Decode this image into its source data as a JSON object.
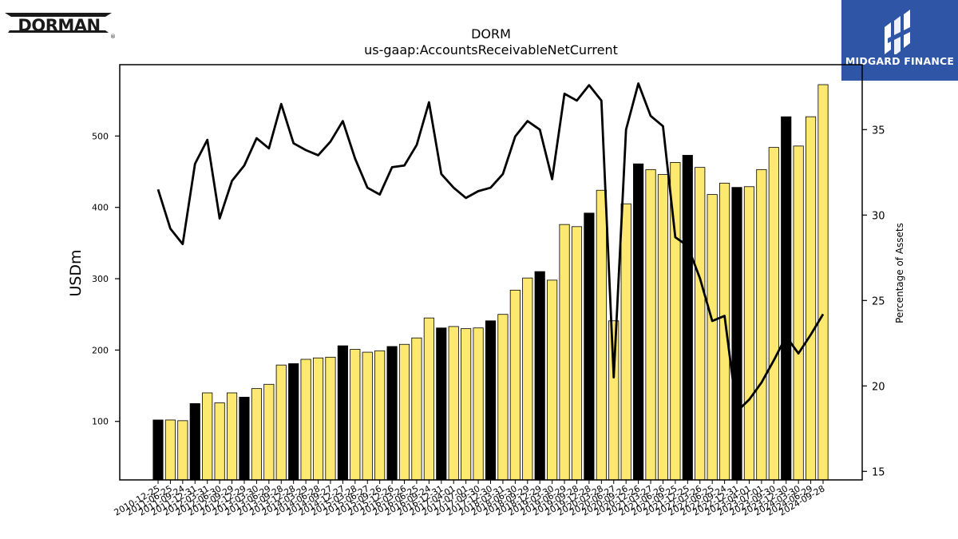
{
  "logos": {
    "left_text": "DORMAN",
    "right_text": "MIDGARD FINANCE"
  },
  "chart_data": {
    "type": "bar",
    "title": "DORM",
    "subtitle": "us-gaap:AccountsReceivableNetCurrent",
    "ylabel": "USDm",
    "y2label": "Percentage of Assets",
    "ylim": [
      18,
      600
    ],
    "y2lim": [
      14.5,
      38.8
    ],
    "yticks": [
      100,
      200,
      300,
      400,
      500
    ],
    "y2ticks": [
      15,
      20,
      25,
      30,
      35
    ],
    "colors": {
      "bar_annual": "#000000",
      "bar_quarter": "#fde96f",
      "line": "#000000"
    },
    "categories": [
      "2010-12-25",
      "2011-06-25",
      "2011-09-24",
      "2011-12-31",
      "2012-03-31",
      "2012-06-30",
      "2012-09-29",
      "2012-12-29",
      "2013-03-30",
      "2013-06-29",
      "2013-09-28",
      "2013-12-28",
      "2014-03-29",
      "2014-06-28",
      "2014-09-27",
      "2014-12-27",
      "2015-03-28",
      "2015-06-27",
      "2015-09-26",
      "2015-12-26",
      "2016-03-26",
      "2016-06-25",
      "2016-09-24",
      "2016-12-31",
      "2017-04-01",
      "2017-07-01",
      "2017-09-30",
      "2017-12-30",
      "2018-03-31",
      "2018-06-30",
      "2018-09-29",
      "2018-12-29",
      "2019-03-30",
      "2019-06-29",
      "2019-09-28",
      "2019-12-28",
      "2020-03-28",
      "2020-06-27",
      "2020-09-26",
      "2020-12-26",
      "2021-03-27",
      "2021-06-26",
      "2021-09-25",
      "2021-12-25",
      "2022-03-26",
      "2022-06-25",
      "2022-09-24",
      "2022-12-31",
      "2023-04-01",
      "2023-07-01",
      "2023-09-30",
      "2023-12-30",
      "2024-03-30",
      "2024-06-29",
      "2024-09-28"
    ],
    "tick_labels": [
      "2010-12-25",
      "2011-06-25",
      "2011-09-24",
      "2011-12-31",
      "2012-03-31",
      "2012-06-30",
      "2012-09-29",
      "2012-12-29",
      "2013-03-30",
      "2013-06-29",
      "2013-09-28",
      "2013-12-28",
      "2014-03-29",
      "2014-06-28",
      "2014-09-27",
      "2014-12-27",
      "2015-03-28",
      "2015-06-27",
      "2015-09-26",
      "2015-12-26",
      "2016-03-26",
      "2016-06-25",
      "2016-09-24",
      "2016-12-31",
      "2017-04-01",
      "2017-07-01",
      "2017-09-30",
      "2017-12-30",
      "2018-03-31",
      "2018-06-30",
      "2018-09-29",
      "2018-12-29",
      "2019-03-30",
      "2019-06-29",
      "2019-09-28",
      "2019-12-28",
      "2020-03-28",
      "2020-06-27",
      "2020-09-26",
      "2020-12-26",
      "2021-03-27",
      "2021-06-26",
      "2021-09-25",
      "2021-12-25",
      "2022-03-26",
      "2022-06-25",
      "2022-09-24",
      "2022-12-31",
      "2023-04-01",
      "2023-07-01",
      "2023-09-30",
      "2023-12-30",
      "2024-03-30",
      "2024-06-29",
      "2024-09-28"
    ],
    "series": [
      {
        "kind": "bar",
        "axis": "left",
        "values": [
          102,
          102,
          101,
          125,
          140,
          126,
          140,
          134,
          146,
          152,
          179,
          181,
          187,
          189,
          190,
          206,
          201,
          197,
          199,
          205,
          208,
          217,
          245,
          231,
          233,
          230,
          231,
          241,
          250,
          284,
          301,
          310,
          298,
          376,
          373,
          392,
          424,
          241,
          405,
          461,
          453,
          446,
          463,
          473,
          456,
          418,
          434,
          428,
          429,
          453,
          484,
          527,
          486,
          527,
          572
        ],
        "annual": [
          true,
          false,
          false,
          true,
          false,
          false,
          false,
          true,
          false,
          false,
          false,
          true,
          false,
          false,
          false,
          true,
          false,
          false,
          false,
          true,
          false,
          false,
          false,
          true,
          false,
          false,
          false,
          true,
          false,
          false,
          false,
          true,
          false,
          false,
          false,
          true,
          false,
          false,
          false,
          true,
          false,
          false,
          false,
          true,
          false,
          false,
          false,
          true,
          false,
          false,
          false,
          true,
          false,
          false,
          false
        ]
      },
      {
        "kind": "line",
        "axis": "right",
        "values": [
          31.5,
          29.2,
          28.3,
          33.0,
          34.4,
          29.8,
          32.0,
          32.9,
          34.5,
          33.9,
          36.5,
          34.2,
          33.8,
          33.5,
          34.3,
          35.5,
          33.3,
          31.6,
          31.2,
          32.8,
          32.9,
          34.1,
          36.6,
          32.4,
          31.6,
          31.0,
          31.4,
          31.6,
          32.4,
          34.6,
          35.5,
          35.0,
          32.1,
          37.1,
          36.7,
          37.6,
          36.7,
          20.5,
          35.0,
          37.7,
          35.8,
          35.2,
          28.7,
          28.2,
          26.3,
          23.8,
          24.1,
          18.5,
          19.2,
          20.2,
          21.5,
          22.9,
          21.9,
          23.0,
          24.2
        ]
      }
    ]
  }
}
